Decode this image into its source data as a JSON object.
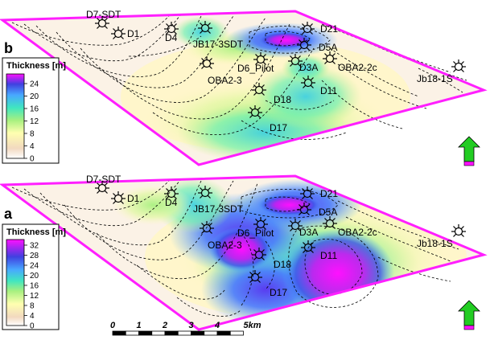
{
  "panels": [
    {
      "letter": "b",
      "legend": {
        "title": "Thickness [m]",
        "ticks": [
          "24",
          "20",
          "16",
          "12",
          "8",
          "4",
          "0"
        ]
      },
      "wells": [
        "D7-SDT",
        "D1",
        "D4",
        "JB17-3SDT",
        "D21",
        "D5A",
        "D6_Pilot",
        "D3A",
        "OBA2-2c",
        "Jb18-1S",
        "OBA2-3",
        "D11",
        "D18",
        "D17"
      ]
    },
    {
      "letter": "a",
      "legend": {
        "title": "Thickness [m]",
        "ticks": [
          "32",
          "28",
          "24",
          "20",
          "16",
          "12",
          "8",
          "4",
          "0"
        ]
      },
      "wells": [
        "D7-SDT",
        "D1",
        "D4",
        "JB17-3SDT",
        "D21",
        "D5A",
        "D6_Pilot",
        "D3A",
        "OBA2-2c",
        "Jb18-1S",
        "OBA2-3",
        "D11",
        "D18",
        "D17"
      ]
    }
  ],
  "scale_bar": {
    "labels": [
      "0",
      "1",
      "2",
      "3",
      "4",
      "5km"
    ]
  },
  "colors": {
    "outline": "#ff1fff",
    "north_arrow": "#22cc22",
    "ramp": [
      "#ffffff",
      "#f2d9bf",
      "#ffffb0",
      "#a8f080",
      "#40e6c0",
      "#48a8ff",
      "#4040e0",
      "#ff10ff"
    ]
  },
  "icons": {
    "well": "well-symbol-icon",
    "north": "north-arrow-icon"
  }
}
